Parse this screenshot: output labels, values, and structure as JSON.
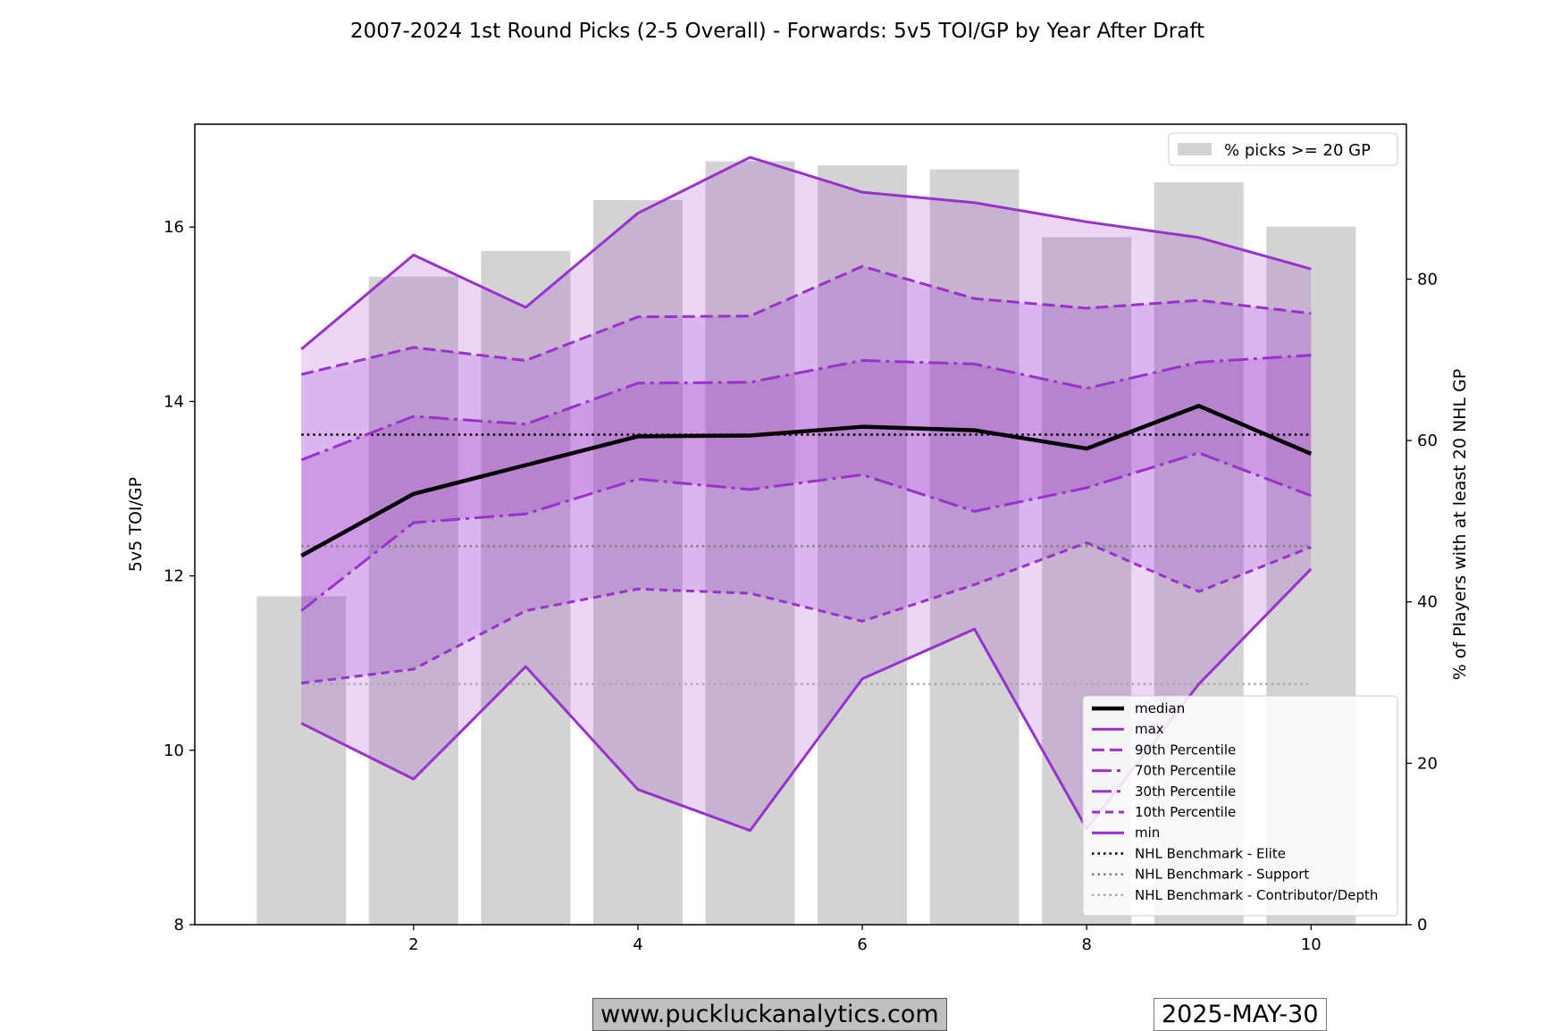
{
  "colors": {
    "line": "#9932cc",
    "band": "#9932cc",
    "bars": "#d3d3d3",
    "median": "#000000",
    "elite": "#000000",
    "support": "#808080",
    "contributor": "#a9a9a9"
  },
  "footer": {
    "website": "www.puckluckanalytics.com",
    "date": "2025-MAY-30"
  },
  "chart_data": {
    "type": "line",
    "title": "2007-2024 1st Round Picks (2-5 Overall) - Forwards: 5v5 TOI/GP by Year After Draft",
    "ylabel": "5v5 TOI/GP",
    "y2label": "% of Players with at least 20 NHL GP",
    "xlim": [
      0.05,
      10.85
    ],
    "ylim": [
      8,
      17.18
    ],
    "y2lim": [
      0,
      99.2
    ],
    "xticks": [
      2,
      4,
      6,
      8,
      10
    ],
    "yticks": [
      8,
      10,
      12,
      14,
      16
    ],
    "y2ticks": [
      0,
      20,
      40,
      60,
      80
    ],
    "x": [
      1,
      2,
      3,
      4,
      5,
      6,
      7,
      8,
      9,
      10
    ],
    "bars": {
      "name": "% picks >= 20 GP",
      "values": [
        40.7,
        80.3,
        83.5,
        89.8,
        94.6,
        94.1,
        93.6,
        85.2,
        92.0,
        86.5
      ]
    },
    "series": [
      {
        "name": "median",
        "style": "solid",
        "width": 4.5,
        "values": [
          12.23,
          12.94,
          13.27,
          13.6,
          13.61,
          13.71,
          13.67,
          13.46,
          13.95,
          13.4
        ]
      },
      {
        "name": "max",
        "style": "solid",
        "width": 3,
        "values": [
          14.6,
          15.68,
          15.08,
          16.16,
          16.8,
          16.4,
          16.28,
          16.06,
          15.88,
          15.52
        ]
      },
      {
        "name": "90th Percentile",
        "style": "dash90",
        "width": 3,
        "values": [
          14.31,
          14.62,
          14.47,
          14.97,
          14.98,
          15.55,
          15.18,
          15.07,
          15.16,
          15.01
        ]
      },
      {
        "name": "70th Percentile",
        "style": "dashdot",
        "width": 3,
        "values": [
          13.33,
          13.83,
          13.74,
          14.21,
          14.22,
          14.47,
          14.43,
          14.15,
          14.45,
          14.53
        ]
      },
      {
        "name": "30th Percentile",
        "style": "dashdot",
        "width": 3,
        "values": [
          11.6,
          12.61,
          12.71,
          13.11,
          12.99,
          13.16,
          12.74,
          13.01,
          13.41,
          12.92
        ]
      },
      {
        "name": "10th Percentile",
        "style": "dash10",
        "width": 3,
        "values": [
          10.77,
          10.93,
          11.6,
          11.85,
          11.8,
          11.48,
          11.9,
          12.38,
          11.82,
          12.33
        ]
      },
      {
        "name": "min",
        "style": "solid",
        "width": 3,
        "values": [
          10.31,
          9.67,
          10.96,
          9.55,
          9.08,
          10.82,
          11.39,
          9.1,
          10.76,
          12.08
        ]
      }
    ],
    "benchmarks": [
      {
        "name": "NHL Benchmark - Elite",
        "value": 13.62
      },
      {
        "name": "NHL Benchmark - Support",
        "value": 12.34
      },
      {
        "name": "NHL Benchmark - Contributor/Depth",
        "value": 10.76
      }
    ],
    "legend_placement": "lower-right",
    "bar_legend_placement": "upper-right"
  }
}
